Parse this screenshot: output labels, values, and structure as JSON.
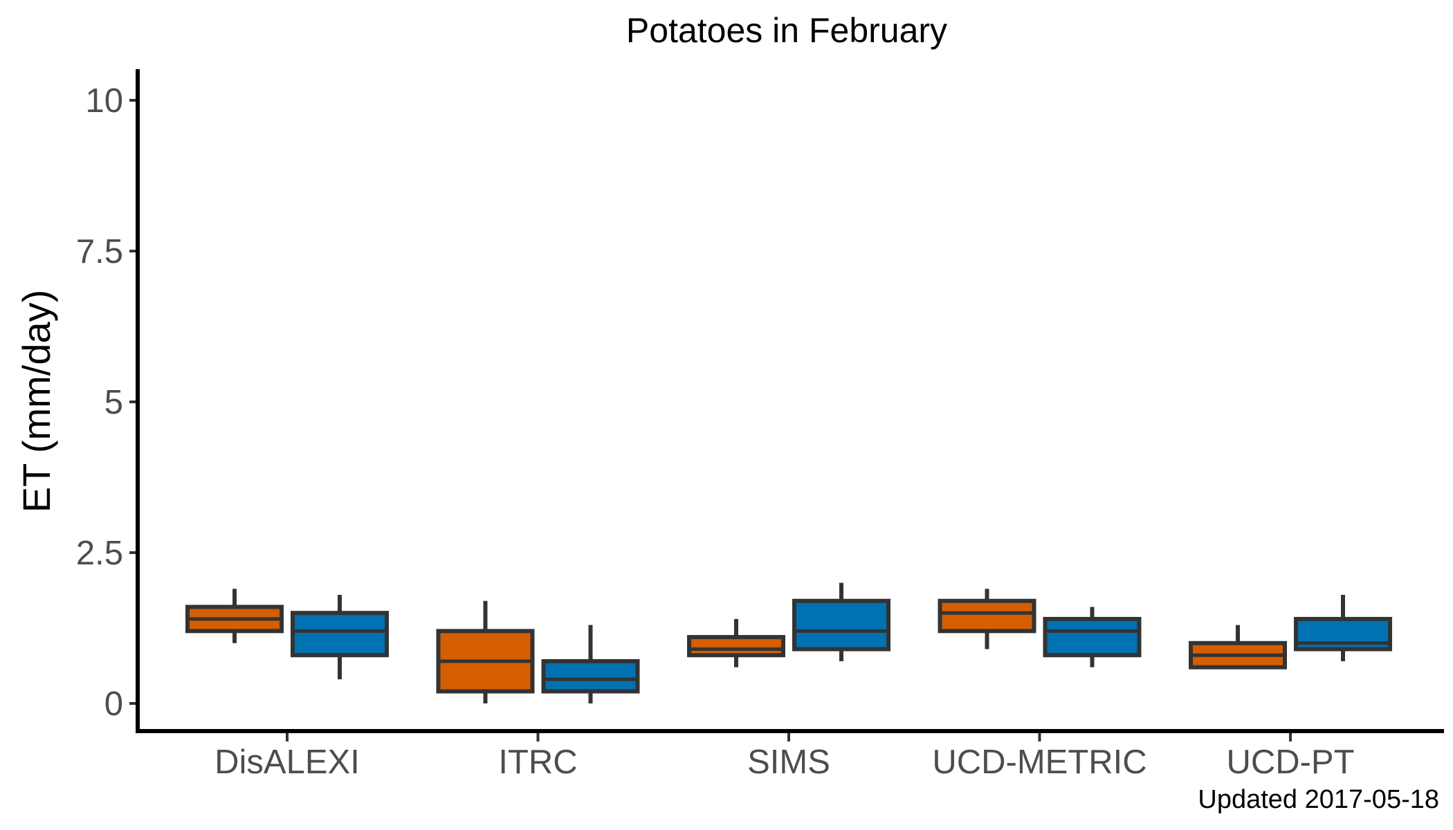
{
  "chart_data": {
    "type": "box",
    "title": "Potatoes in February",
    "xlabel": "",
    "ylabel": "ET (mm/day)",
    "ylim": [
      -0.5,
      10.5
    ],
    "yticks": [
      0,
      2.5,
      5,
      7.5,
      10
    ],
    "ytick_labels": [
      "0",
      "2.5",
      "5",
      "7.5",
      "10"
    ],
    "categories": [
      "DisALEXI",
      "ITRC",
      "SIMS",
      "UCD-METRIC",
      "UCD-PT"
    ],
    "grid": false,
    "legend": "none",
    "series": [
      {
        "color": "#d55e00",
        "boxes": [
          {
            "min": 1.0,
            "q1": 1.2,
            "median": 1.4,
            "q3": 1.6,
            "max": 1.9
          },
          {
            "min": 0.0,
            "q1": 0.2,
            "median": 0.7,
            "q3": 1.2,
            "max": 1.7
          },
          {
            "min": 0.6,
            "q1": 0.8,
            "median": 0.9,
            "q3": 1.1,
            "max": 1.4
          },
          {
            "min": 0.9,
            "q1": 1.2,
            "median": 1.5,
            "q3": 1.7,
            "max": 1.9
          },
          {
            "min": 0.6,
            "q1": 0.6,
            "median": 0.8,
            "q3": 1.0,
            "max": 1.3
          }
        ]
      },
      {
        "color": "#0072b2",
        "boxes": [
          {
            "min": 0.4,
            "q1": 0.8,
            "median": 1.2,
            "q3": 1.5,
            "max": 1.8
          },
          {
            "min": 0.0,
            "q1": 0.2,
            "median": 0.4,
            "q3": 0.7,
            "max": 1.3
          },
          {
            "min": 0.7,
            "q1": 0.9,
            "median": 1.2,
            "q3": 1.7,
            "max": 2.0
          },
          {
            "min": 0.6,
            "q1": 0.8,
            "median": 1.2,
            "q3": 1.4,
            "max": 1.6
          },
          {
            "min": 0.7,
            "q1": 0.9,
            "median": 1.0,
            "q3": 1.4,
            "max": 1.8
          }
        ]
      }
    ],
    "caption": "Updated  2017-05-18"
  }
}
